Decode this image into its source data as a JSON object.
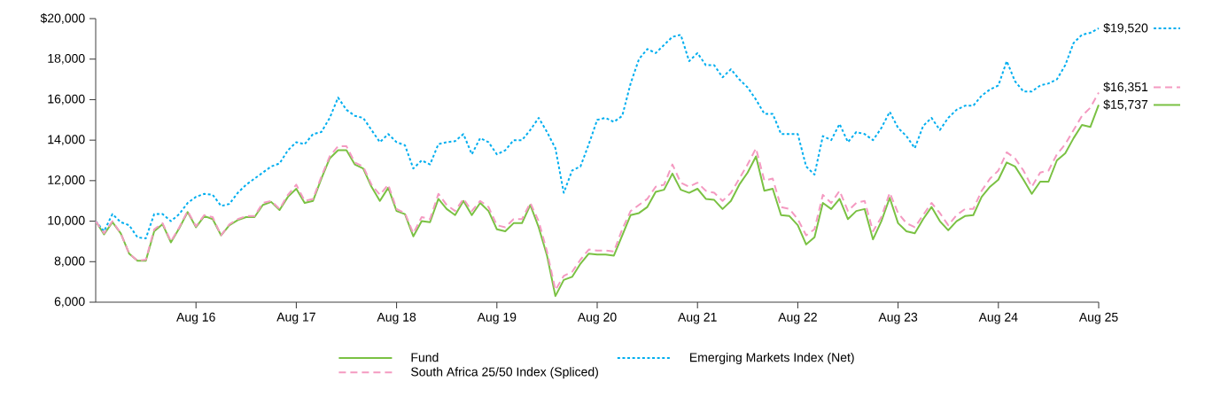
{
  "chart_data": {
    "type": "line",
    "x": [
      "2015-08",
      "2015-09",
      "2015-10",
      "2015-11",
      "2015-12",
      "2016-01",
      "2016-02",
      "2016-03",
      "2016-04",
      "2016-05",
      "2016-06",
      "2016-07",
      "2016-08",
      "2016-09",
      "2016-10",
      "2016-11",
      "2016-12",
      "2017-01",
      "2017-02",
      "2017-03",
      "2017-04",
      "2017-05",
      "2017-06",
      "2017-07",
      "2017-08",
      "2017-09",
      "2017-10",
      "2017-11",
      "2017-12",
      "2018-01",
      "2018-02",
      "2018-03",
      "2018-04",
      "2018-05",
      "2018-06",
      "2018-07",
      "2018-08",
      "2018-09",
      "2018-10",
      "2018-11",
      "2018-12",
      "2019-01",
      "2019-02",
      "2019-03",
      "2019-04",
      "2019-05",
      "2019-06",
      "2019-07",
      "2019-08",
      "2019-09",
      "2019-10",
      "2019-11",
      "2019-12",
      "2020-01",
      "2020-02",
      "2020-03",
      "2020-04",
      "2020-05",
      "2020-06",
      "2020-07",
      "2020-08",
      "2020-09",
      "2020-10",
      "2020-11",
      "2020-12",
      "2021-01",
      "2021-02",
      "2021-03",
      "2021-04",
      "2021-05",
      "2021-06",
      "2021-07",
      "2021-08",
      "2021-09",
      "2021-10",
      "2021-11",
      "2021-12",
      "2022-01",
      "2022-02",
      "2022-03",
      "2022-04",
      "2022-05",
      "2022-06",
      "2022-07",
      "2022-08",
      "2022-09",
      "2022-10",
      "2022-11",
      "2022-12",
      "2023-01",
      "2023-02",
      "2023-03",
      "2023-04",
      "2023-05",
      "2023-06",
      "2023-07",
      "2023-08",
      "2023-09",
      "2023-10",
      "2023-11",
      "2023-12",
      "2024-01",
      "2024-02",
      "2024-03",
      "2024-04",
      "2024-05",
      "2024-06",
      "2024-07",
      "2024-08",
      "2024-09",
      "2024-10",
      "2024-11",
      "2024-12",
      "2025-01",
      "2025-02",
      "2025-03",
      "2025-04",
      "2025-05",
      "2025-06",
      "2025-07",
      "2025-08"
    ],
    "series": [
      {
        "name": "Fund",
        "color": "#7ac143",
        "line_style": "solid",
        "values": [
          10000,
          9350,
          9950,
          9400,
          8400,
          8050,
          8050,
          9500,
          9850,
          8950,
          9650,
          10450,
          9700,
          10250,
          10100,
          9300,
          9800,
          10050,
          10200,
          10200,
          10800,
          10950,
          10550,
          11200,
          11600,
          10900,
          11000,
          12100,
          13100,
          13500,
          13500,
          12800,
          12600,
          11700,
          11000,
          11650,
          10500,
          10350,
          9250,
          10000,
          9950,
          11100,
          10600,
          10300,
          11000,
          10300,
          10900,
          10500,
          9600,
          9500,
          9900,
          9900,
          10800,
          9700,
          8300,
          6300,
          7100,
          7250,
          7900,
          8400,
          8350,
          8350,
          8300,
          9300,
          10300,
          10400,
          10700,
          11450,
          11550,
          12350,
          11550,
          11400,
          11600,
          11100,
          11050,
          10600,
          11000,
          11800,
          12400,
          13200,
          11500,
          11600,
          10300,
          10250,
          9800,
          8850,
          9200,
          10900,
          10600,
          11100,
          10100,
          10500,
          10600,
          9100,
          10000,
          11150,
          9900,
          9500,
          9400,
          10100,
          10700,
          10000,
          9550,
          10000,
          10250,
          10300,
          11200,
          11700,
          12050,
          12900,
          12700,
          12050,
          11350,
          11950,
          11950,
          13000,
          13350,
          14100,
          14750,
          14650,
          15737
        ],
        "value_labels": [
          null,
          null,
          null,
          null,
          null,
          null,
          null,
          null,
          null,
          null,
          null,
          null,
          null,
          null,
          null,
          null,
          null,
          null,
          null,
          null,
          null,
          null,
          null,
          null,
          null,
          null,
          null,
          null,
          null,
          null,
          null,
          null,
          null,
          null,
          null,
          null,
          null,
          null,
          null,
          null,
          null,
          null,
          null,
          null,
          null,
          null,
          null,
          null,
          null,
          null,
          null,
          null,
          null,
          null,
          null,
          null,
          null,
          null,
          null,
          null,
          null,
          null,
          null,
          null,
          null,
          null,
          null,
          null,
          null,
          null,
          null,
          null,
          null,
          null,
          null,
          null,
          null,
          null,
          null,
          null,
          null,
          null,
          null,
          null,
          null,
          null,
          null,
          null,
          null,
          null,
          null,
          null,
          null,
          null,
          null,
          null,
          null,
          null,
          null,
          null,
          null,
          null,
          null,
          null,
          null,
          null,
          null,
          null,
          null,
          null,
          null,
          null,
          null,
          null,
          null,
          null,
          null,
          null,
          null,
          null,
          "$15,737"
        ]
      },
      {
        "name": "Emerging Markets Index (Net)",
        "color": "#00aeef",
        "line_style": "dotted",
        "values": [
          10000,
          9500,
          10350,
          9950,
          9800,
          9200,
          9150,
          10350,
          10350,
          10000,
          10350,
          10900,
          11200,
          11350,
          11300,
          10750,
          10850,
          11400,
          11800,
          12100,
          12400,
          12700,
          12850,
          13500,
          13900,
          13800,
          14300,
          14400,
          15100,
          16100,
          15500,
          15200,
          15100,
          14500,
          13900,
          14300,
          13900,
          13750,
          12600,
          13000,
          12800,
          13800,
          13900,
          13950,
          14300,
          13300,
          14100,
          13900,
          13300,
          13500,
          14000,
          14000,
          14500,
          15100,
          14400,
          13600,
          11400,
          12500,
          12700,
          13800,
          15000,
          15100,
          14900,
          15200,
          16800,
          18000,
          18500,
          18300,
          18700,
          19100,
          19200,
          17900,
          18300,
          17700,
          17700,
          17100,
          17500,
          17000,
          16600,
          16000,
          15300,
          15300,
          14300,
          14300,
          14300,
          12700,
          12300,
          14200,
          14000,
          14800,
          13900,
          14400,
          14300,
          14000,
          14600,
          15400,
          14600,
          14200,
          13600,
          14700,
          15100,
          14500,
          15100,
          15500,
          15700,
          15700,
          16200,
          16500,
          16700,
          17900,
          16900,
          16400,
          16400,
          16700,
          16800,
          17000,
          17700,
          18800,
          19200,
          19300,
          19520
        ],
        "value_labels": [
          null,
          null,
          null,
          null,
          null,
          null,
          null,
          null,
          null,
          null,
          null,
          null,
          null,
          null,
          null,
          null,
          null,
          null,
          null,
          null,
          null,
          null,
          null,
          null,
          null,
          null,
          null,
          null,
          null,
          null,
          null,
          null,
          null,
          null,
          null,
          null,
          null,
          null,
          null,
          null,
          null,
          null,
          null,
          null,
          null,
          null,
          null,
          null,
          null,
          null,
          null,
          null,
          null,
          null,
          null,
          null,
          null,
          null,
          null,
          null,
          null,
          null,
          null,
          null,
          null,
          null,
          null,
          null,
          null,
          null,
          null,
          null,
          null,
          null,
          null,
          null,
          null,
          null,
          null,
          null,
          null,
          null,
          null,
          null,
          null,
          null,
          null,
          null,
          null,
          null,
          null,
          null,
          null,
          null,
          null,
          null,
          null,
          null,
          null,
          null,
          null,
          null,
          null,
          null,
          null,
          null,
          null,
          null,
          null,
          null,
          null,
          null,
          null,
          null,
          null,
          null,
          null,
          null,
          null,
          null,
          "$19,520"
        ]
      },
      {
        "name": "South Africa 25/50 Index (Spliced)",
        "color": "#f49ac1",
        "line_style": "dashed",
        "values": [
          10000,
          9400,
          10000,
          9400,
          8400,
          8050,
          8100,
          9600,
          9900,
          9000,
          9700,
          10500,
          9750,
          10300,
          10200,
          9300,
          9850,
          10100,
          10250,
          10250,
          10900,
          11000,
          10600,
          11300,
          11800,
          11000,
          11100,
          12200,
          13200,
          13700,
          13700,
          12900,
          12700,
          11800,
          11300,
          11800,
          10600,
          10400,
          9400,
          10200,
          10100,
          11350,
          10800,
          10500,
          11100,
          10500,
          11000,
          10700,
          9800,
          9700,
          10100,
          10100,
          10900,
          10000,
          8500,
          6600,
          7300,
          7500,
          8100,
          8600,
          8550,
          8550,
          8500,
          9600,
          10500,
          10800,
          11100,
          11700,
          11800,
          12800,
          11900,
          11700,
          11900,
          11500,
          11400,
          11000,
          11400,
          12100,
          12800,
          13600,
          12000,
          12100,
          10700,
          10600,
          10100,
          9300,
          9600,
          11300,
          10900,
          11500,
          10500,
          10900,
          11000,
          9500,
          10200,
          11400,
          10400,
          9900,
          9700,
          10300,
          10900,
          10400,
          9800,
          10300,
          10600,
          10600,
          11500,
          12100,
          12500,
          13400,
          13100,
          12500,
          11700,
          12400,
          12500,
          13300,
          13800,
          14500,
          15200,
          15600,
          16351
        ],
        "value_labels": [
          null,
          null,
          null,
          null,
          null,
          null,
          null,
          null,
          null,
          null,
          null,
          null,
          null,
          null,
          null,
          null,
          null,
          null,
          null,
          null,
          null,
          null,
          null,
          null,
          null,
          null,
          null,
          null,
          null,
          null,
          null,
          null,
          null,
          null,
          null,
          null,
          null,
          null,
          null,
          null,
          null,
          null,
          null,
          null,
          null,
          null,
          null,
          null,
          null,
          null,
          null,
          null,
          null,
          null,
          null,
          null,
          null,
          null,
          null,
          null,
          null,
          null,
          null,
          null,
          null,
          null,
          null,
          null,
          null,
          null,
          null,
          null,
          null,
          null,
          null,
          null,
          null,
          null,
          null,
          null,
          null,
          null,
          null,
          null,
          null,
          null,
          null,
          null,
          null,
          null,
          null,
          null,
          null,
          null,
          null,
          null,
          null,
          null,
          null,
          null,
          null,
          null,
          null,
          null,
          null,
          null,
          null,
          null,
          null,
          null,
          null,
          null,
          null,
          null,
          null,
          null,
          null,
          null,
          null,
          null,
          "$16,351"
        ]
      }
    ],
    "xlim": [
      "2015-08",
      "2025-08"
    ],
    "xticks": [
      {
        "value": "2016-08",
        "label": "Aug 16"
      },
      {
        "value": "2017-08",
        "label": "Aug 17"
      },
      {
        "value": "2018-08",
        "label": "Aug 18"
      },
      {
        "value": "2019-08",
        "label": "Aug 19"
      },
      {
        "value": "2020-08",
        "label": "Aug 20"
      },
      {
        "value": "2021-08",
        "label": "Aug 21"
      },
      {
        "value": "2022-08",
        "label": "Aug 22"
      },
      {
        "value": "2023-08",
        "label": "Aug 23"
      },
      {
        "value": "2024-08",
        "label": "Aug 24"
      },
      {
        "value": "2025-08",
        "label": "Aug 25"
      }
    ],
    "ylim": [
      6000,
      20000
    ],
    "yticks": [
      {
        "value": 6000,
        "label": "6,000"
      },
      {
        "value": 8000,
        "label": "8,000"
      },
      {
        "value": 10000,
        "label": "10,000"
      },
      {
        "value": 12000,
        "label": "12,000"
      },
      {
        "value": 14000,
        "label": "14,000"
      },
      {
        "value": 16000,
        "label": "16,000"
      },
      {
        "value": 18000,
        "label": "18,000"
      },
      {
        "value": 20000,
        "label": "$20,000"
      }
    ],
    "grid": false,
    "legend": "bottom",
    "marker": "none"
  }
}
